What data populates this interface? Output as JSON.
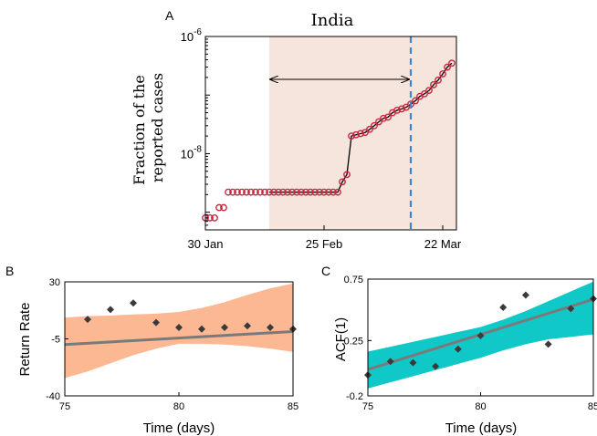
{
  "chart_data": [
    {
      "panel": "A",
      "type": "scatter",
      "title": "India",
      "ylabel_lines": [
        "Fraction of the",
        "reported cases"
      ],
      "yscale": "log",
      "ylim": [
        5e-10,
        1e-06
      ],
      "yticks": [
        {
          "value": 1e-06,
          "base": "10",
          "exp": "-6"
        },
        {
          "value": 1e-08,
          "base": "10",
          "exp": "-8"
        }
      ],
      "xlim": [
        0,
        55
      ],
      "xticks": [
        {
          "value": 0,
          "label": "30 Jan"
        },
        {
          "value": 26,
          "label": "25 Feb"
        },
        {
          "value": 52,
          "label": "22 Mar"
        }
      ],
      "shaded_region": [
        14,
        55
      ],
      "dashed_line_x": 45,
      "arrow_span": [
        14,
        45
      ],
      "colors": {
        "shade": "#f6e5dd",
        "markers": "#c42840",
        "fit": "#000000",
        "dashed": "#3b86d1"
      },
      "x": [
        0,
        1,
        2,
        3,
        4,
        5,
        6,
        7,
        8,
        9,
        10,
        11,
        12,
        13,
        14,
        15,
        16,
        17,
        18,
        19,
        20,
        21,
        22,
        23,
        24,
        25,
        26,
        27,
        28,
        29,
        30,
        31,
        32,
        33,
        34,
        35,
        36,
        37,
        38,
        39,
        40,
        41,
        42,
        43,
        44,
        45,
        46,
        47,
        48,
        49,
        50,
        51,
        52,
        53,
        54
      ],
      "y": [
        8e-10,
        8e-10,
        8e-10,
        1.2e-09,
        1.2e-09,
        2.2e-09,
        2.2e-09,
        2.2e-09,
        2.2e-09,
        2.2e-09,
        2.2e-09,
        2.2e-09,
        2.2e-09,
        2.2e-09,
        2.2e-09,
        2.2e-09,
        2.2e-09,
        2.2e-09,
        2.2e-09,
        2.2e-09,
        2.2e-09,
        2.2e-09,
        2.2e-09,
        2.2e-09,
        2.2e-09,
        2.2e-09,
        2.2e-09,
        2.2e-09,
        2.2e-09,
        2.2e-09,
        3.3e-09,
        4.4e-09,
        2e-08,
        2.1e-08,
        2.2e-08,
        2.3e-08,
        2.6e-08,
        3e-08,
        3.5e-08,
        4e-08,
        4.2e-08,
        5e-08,
        5.5e-08,
        5.8e-08,
        6.2e-08,
        7e-08,
        8e-08,
        9.5e-08,
        1.05e-07,
        1.2e-07,
        1.5e-07,
        1.8e-07,
        2.3e-07,
        3e-07,
        3.5e-07
      ]
    },
    {
      "panel": "B",
      "type": "scatter",
      "xlabel": "Time (days)",
      "ylabel": "Return Rate",
      "xlim": [
        75,
        85
      ],
      "ylim": [
        -40,
        30
      ],
      "xticks": [
        75,
        80,
        85
      ],
      "yticks": [
        30,
        -5,
        -40
      ],
      "colors": {
        "band": "#fcb793",
        "line": "#7a7a7a",
        "points": "#3a3a3a"
      },
      "x": [
        76,
        77,
        78,
        79,
        80,
        81,
        82,
        83,
        84,
        85
      ],
      "y": [
        7,
        13,
        17,
        5,
        2,
        1,
        2,
        3,
        2,
        1
      ],
      "fit": [
        -8.5,
        0.8
      ],
      "band_upper": [
        8,
        9,
        9.3,
        10,
        10.5,
        11.5,
        14,
        17.5,
        22,
        26,
        29
      ],
      "band_lower": [
        -29,
        -25,
        -20,
        -15,
        -11,
        -8,
        -8,
        -8.5,
        -9.5,
        -11,
        -13
      ]
    },
    {
      "panel": "C",
      "type": "scatter",
      "xlabel": "Time (days)",
      "ylabel": "ACF(1)",
      "xlim": [
        75,
        85
      ],
      "ylim": [
        -0.2,
        0.75
      ],
      "xticks": [
        75,
        80,
        85
      ],
      "yticks": [
        0.75,
        0.25,
        -0.2
      ],
      "colors": {
        "band": "#10c8c8",
        "line": "#7a7a7a",
        "points": "#3a3a3a"
      },
      "x": [
        75,
        76,
        77,
        78,
        79,
        80,
        81,
        82,
        83,
        84,
        85
      ],
      "y": [
        -0.03,
        0.08,
        0.07,
        0.04,
        0.18,
        0.29,
        0.52,
        0.62,
        0.22,
        0.51,
        0.59
      ],
      "fit": [
        0.015,
        0.057
      ],
      "band_upper": [
        0.16,
        0.2,
        0.24,
        0.28,
        0.32,
        0.36,
        0.42,
        0.49,
        0.57,
        0.65,
        0.73
      ],
      "band_lower": [
        -0.14,
        -0.09,
        -0.04,
        0.01,
        0.06,
        0.11,
        0.17,
        0.22,
        0.26,
        0.28,
        0.3
      ]
    }
  ]
}
